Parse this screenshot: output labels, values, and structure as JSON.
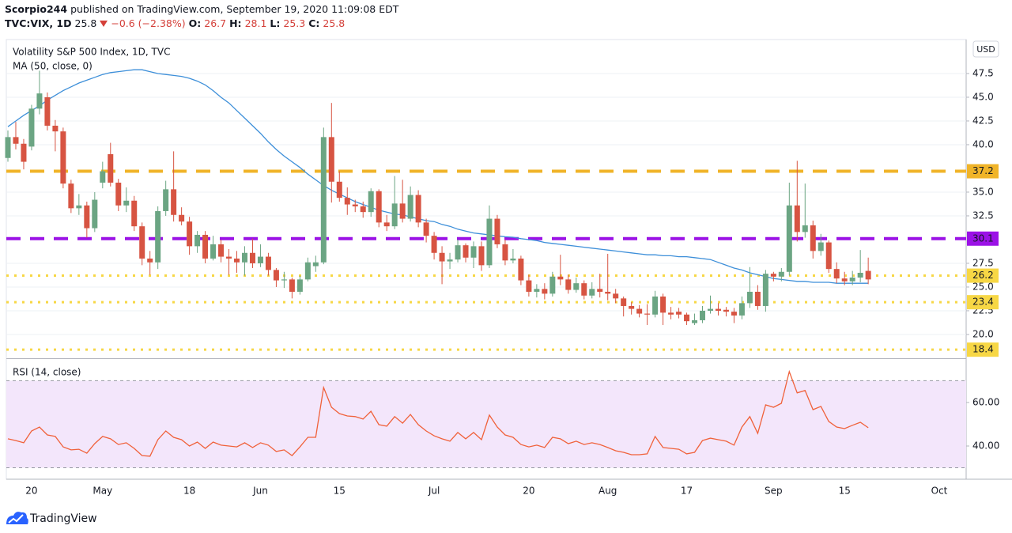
{
  "header": {
    "author": "Scorpio244",
    "published": "published on TradingView.com, September 19, 2020 11:09:08 EDT",
    "symbol": "TVC:VIX, 1D",
    "last": 25.8,
    "change": "−0.6 (−2.38%)",
    "ohlc": [
      {
        "label": "O:",
        "value": 26.7
      },
      {
        "label": "H:",
        "value": 28.1
      },
      {
        "label": "L:",
        "value": 25.3
      },
      {
        "label": "C:",
        "value": 25.8
      }
    ]
  },
  "footer": "TradingView",
  "chart_data": [
    {
      "type": "candlestick",
      "title": "Volatility S&P 500 Index, 1D, TVC",
      "currency": "USD",
      "up_color": "#6ba583",
      "down_color": "#d75442",
      "grid": true,
      "ylim": [
        17.58,
        51.08
      ],
      "yticks": [
        {
          "value": 20,
          "label": "20.0"
        },
        22.5,
        {
          "value": 25,
          "label": "25.0"
        },
        27.5,
        32.5,
        {
          "value": 35,
          "label": "35.0"
        },
        {
          "value": 40,
          "label": "40.0"
        },
        42.5,
        {
          "value": 45,
          "label": "45.0"
        },
        47.5
      ],
      "categories": [
        null,
        null,
        null,
        "20",
        null,
        null,
        null,
        null,
        null,
        null,
        null,
        null,
        "May",
        null,
        null,
        null,
        null,
        null,
        null,
        null,
        null,
        null,
        null,
        "18",
        null,
        null,
        null,
        null,
        null,
        null,
        null,
        null,
        "Jun",
        null,
        null,
        null,
        null,
        null,
        null,
        null,
        null,
        null,
        "15",
        null,
        null,
        null,
        null,
        null,
        null,
        null,
        null,
        null,
        null,
        null,
        "Jul",
        null,
        null,
        null,
        null,
        null,
        null,
        null,
        null,
        null,
        null,
        null,
        "20",
        null,
        null,
        null,
        null,
        null,
        null,
        null,
        null,
        null,
        "Aug",
        null,
        null,
        null,
        null,
        null,
        null,
        null,
        null,
        null,
        "17",
        null,
        null,
        null,
        null,
        null,
        null,
        null,
        null,
        null,
        null,
        "Sep",
        null,
        null,
        null,
        null,
        null,
        null,
        null,
        null,
        "15",
        null,
        null,
        null,
        null,
        null,
        null,
        null,
        null,
        null,
        null,
        null,
        "Oct"
      ],
      "open": [
        38.6,
        40.8,
        40.1,
        39.8,
        43.8,
        45.0,
        42.0,
        41.4,
        35.9,
        33.3,
        33.6,
        31.2,
        36.0,
        39.0,
        36.0,
        33.6,
        34.1,
        31.4,
        28.0,
        27.6,
        33.0,
        35.3,
        32.6,
        31.9,
        29.3,
        30.5,
        28.0,
        29.5,
        28.2,
        28.0,
        27.6,
        28.6,
        27.5,
        28.2,
        26.8,
        25.7,
        25.8,
        24.5,
        25.8,
        27.2,
        27.6,
        40.8,
        36.1,
        34.4,
        33.7,
        33.5,
        32.9,
        35.1,
        31.8,
        31.4,
        33.8,
        32.2,
        34.7,
        31.8,
        30.4,
        28.6,
        27.7,
        27.9,
        29.4,
        28.1,
        29.3,
        27.3,
        32.2,
        29.5,
        27.8,
        28.0,
        25.7,
        24.5,
        24.8,
        24.3,
        26.1,
        25.8,
        24.7,
        25.4,
        24.1,
        24.8,
        24.5,
        24.3,
        23.8,
        23.0,
        22.7,
        22.2,
        22.1,
        24.0,
        22.3,
        22.4,
        22.1,
        21.2,
        21.5,
        22.5,
        22.7,
        22.6,
        22.4,
        22.0,
        23.3,
        24.5,
        23.0,
        26.4,
        26.1,
        26.6,
        33.6,
        30.8,
        31.5,
        28.8,
        29.7,
        26.9,
        25.9,
        25.6,
        26.0,
        26.7,
        null,
        null,
        null,
        null,
        null,
        null,
        null,
        null,
        null
      ],
      "high": [
        41.5,
        42.4,
        40.6,
        44.2,
        47.8,
        45.5,
        42.6,
        41.8,
        36.3,
        34.8,
        34.0,
        35.0,
        38.2,
        40.2,
        36.4,
        35.5,
        34.6,
        31.8,
        28.8,
        33.5,
        36.2,
        39.3,
        33.4,
        32.4,
        30.9,
        30.9,
        30.4,
        30.0,
        29.0,
        28.8,
        29.3,
        30.1,
        29.5,
        28.6,
        27.0,
        26.6,
        26.0,
        26.2,
        28.1,
        28.3,
        41.8,
        44.4,
        37.2,
        35.5,
        34.2,
        34.0,
        35.4,
        35.3,
        32.6,
        36.7,
        36.3,
        35.6,
        35.2,
        32.2,
        30.8,
        29.3,
        28.6,
        30.0,
        29.6,
        29.8,
        29.8,
        33.6,
        32.6,
        30.0,
        29.0,
        28.3,
        26.3,
        25.3,
        25.4,
        26.6,
        28.4,
        26.3,
        26.0,
        25.7,
        25.5,
        26.4,
        28.5,
        24.8,
        24.0,
        23.4,
        23.1,
        23.2,
        24.6,
        24.3,
        22.9,
        22.8,
        22.3,
        22.2,
        23.0,
        24.1,
        23.3,
        22.9,
        22.8,
        24.0,
        27.1,
        25.2,
        26.8,
        26.6,
        27.0,
        36.0,
        38.3,
        35.9,
        32.0,
        30.6,
        29.9,
        27.6,
        26.6,
        26.7,
        28.9,
        28.1,
        null,
        null,
        null,
        null,
        null,
        null,
        null,
        null,
        null
      ],
      "low": [
        38.2,
        39.5,
        37.4,
        39.4,
        43.2,
        41.5,
        39.3,
        35.4,
        32.8,
        32.6,
        30.2,
        30.8,
        35.4,
        35.6,
        33.0,
        32.9,
        30.9,
        27.3,
        26.3,
        26.9,
        32.5,
        31.9,
        31.5,
        28.4,
        28.6,
        27.5,
        27.8,
        27.6,
        26.3,
        26.5,
        26.2,
        27.0,
        27.1,
        26.2,
        25.0,
        24.9,
        23.8,
        24.2,
        25.6,
        26.6,
        27.4,
        33.9,
        34.0,
        32.6,
        32.9,
        32.3,
        32.4,
        31.3,
        30.9,
        31.1,
        31.8,
        31.9,
        31.3,
        29.7,
        27.9,
        25.3,
        26.9,
        27.6,
        27.6,
        27.0,
        26.7,
        27.0,
        29.1,
        27.3,
        27.5,
        25.2,
        24.0,
        23.9,
        23.7,
        24.0,
        25.2,
        24.3,
        24.4,
        23.7,
        23.8,
        23.9,
        23.6,
        23.3,
        21.9,
        22.1,
        21.8,
        21.0,
        21.8,
        21.0,
        21.6,
        21.7,
        21.0,
        21.0,
        21.2,
        22.2,
        22.0,
        21.9,
        21.2,
        21.6,
        22.8,
        22.6,
        22.4,
        25.6,
        25.6,
        26.2,
        29.8,
        30.2,
        28.0,
        28.3,
        26.5,
        25.4,
        25.2,
        25.2,
        25.5,
        25.3,
        null,
        null,
        null,
        null,
        null,
        null,
        null,
        null,
        null
      ],
      "close": [
        40.8,
        40.1,
        38.2,
        43.8,
        45.4,
        42.0,
        41.4,
        35.9,
        33.3,
        33.6,
        31.2,
        34.2,
        37.2,
        36.0,
        33.6,
        34.1,
        31.4,
        28.0,
        27.6,
        33.0,
        35.3,
        32.6,
        31.9,
        29.3,
        30.5,
        28.0,
        29.5,
        28.2,
        28.0,
        27.6,
        28.6,
        27.5,
        28.2,
        26.8,
        25.7,
        25.8,
        24.5,
        25.8,
        27.6,
        27.6,
        40.8,
        36.1,
        34.4,
        33.7,
        33.5,
        32.9,
        35.1,
        31.8,
        31.4,
        33.8,
        32.2,
        34.7,
        31.8,
        30.4,
        28.6,
        27.7,
        27.9,
        29.4,
        28.1,
        29.3,
        27.3,
        32.2,
        29.5,
        27.8,
        28.0,
        25.7,
        24.5,
        24.8,
        24.3,
        26.1,
        25.8,
        24.7,
        25.4,
        24.1,
        24.8,
        24.5,
        24.3,
        23.8,
        23.0,
        22.7,
        22.2,
        22.1,
        24.0,
        22.3,
        22.1,
        22.1,
        21.4,
        21.5,
        22.5,
        22.7,
        22.5,
        22.4,
        22.0,
        23.3,
        24.5,
        23.0,
        26.4,
        26.1,
        26.6,
        33.6,
        30.8,
        31.5,
        28.8,
        29.7,
        26.9,
        25.9,
        25.6,
        26.0,
        26.5,
        25.8,
        null,
        null,
        null,
        null,
        null,
        null,
        null,
        null,
        null
      ],
      "series": [
        {
          "name": "MA (50, close, 0)",
          "color": "#3d8fd9",
          "values": [
            41.9,
            42.5,
            43.1,
            43.6,
            44.1,
            44.7,
            45.2,
            45.7,
            46.1,
            46.5,
            46.8,
            47.1,
            47.4,
            47.6,
            47.7,
            47.8,
            47.9,
            47.9,
            47.7,
            47.5,
            47.4,
            47.3,
            47.2,
            47.0,
            46.7,
            46.3,
            45.7,
            45.0,
            44.4,
            43.6,
            42.8,
            42.0,
            41.2,
            40.3,
            39.5,
            38.8,
            38.2,
            37.6,
            36.9,
            36.3,
            35.7,
            35.2,
            34.8,
            34.4,
            34.0,
            33.7,
            33.4,
            33.1,
            32.9,
            32.7,
            32.6,
            32.4,
            32.2,
            32.0,
            31.9,
            31.6,
            31.4,
            31.1,
            30.9,
            30.7,
            30.6,
            30.5,
            30.4,
            30.3,
            30.25,
            30.1,
            30.0,
            29.9,
            29.7,
            29.6,
            29.5,
            29.4,
            29.3,
            29.2,
            29.1,
            29.0,
            28.9,
            28.8,
            28.7,
            28.6,
            28.5,
            28.4,
            28.4,
            28.3,
            28.3,
            28.2,
            28.2,
            28.1,
            28.0,
            27.9,
            27.6,
            27.3,
            27.0,
            26.8,
            26.5,
            26.3,
            26.1,
            25.9,
            25.8,
            25.7,
            25.6,
            25.6,
            25.5,
            25.5,
            25.5,
            25.4,
            25.4,
            25.4,
            25.4,
            25.4,
            null,
            null,
            null,
            null,
            null,
            null,
            null,
            null,
            null
          ]
        }
      ],
      "levels": [
        {
          "value": 37.2,
          "color": "#f0b429",
          "style": "dashed"
        },
        {
          "value": 30.1,
          "color": "#9b12e6",
          "style": "dashed"
        },
        {
          "value": 26.2,
          "color": "#f7d745",
          "style": "dotted"
        },
        {
          "value": 23.4,
          "color": "#f7d745",
          "style": "dotted"
        },
        {
          "value": 18.4,
          "color": "#f7d745",
          "style": "dotted"
        }
      ]
    },
    {
      "type": "line",
      "title": "RSI (14, close)",
      "color": "#f0613a",
      "grid": false,
      "ylim": [
        25.1,
        79.6
      ],
      "yticks": [
        {
          "value": 60,
          "label": "60.00"
        },
        {
          "value": 40,
          "label": "40.00"
        }
      ],
      "band": [
        30,
        70
      ],
      "band_color": "#f3e6fb",
      "values": [
        43.3,
        42.5,
        41.5,
        46.9,
        48.7,
        45.1,
        44.4,
        39.6,
        38.2,
        38.5,
        36.7,
        41.1,
        44.4,
        43.3,
        40.7,
        41.5,
        38.9,
        35.6,
        35.3,
        42.9,
        46.9,
        44.0,
        42.9,
        40.0,
        41.8,
        38.9,
        41.8,
        40.4,
        40.0,
        39.6,
        41.5,
        39.3,
        41.5,
        40.4,
        37.5,
        38.2,
        35.6,
        39.6,
        44.0,
        44.0,
        66.9,
        57.8,
        54.9,
        53.8,
        53.5,
        52.4,
        56.0,
        49.8,
        49.1,
        53.5,
        50.5,
        54.5,
        49.8,
        46.9,
        44.7,
        43.3,
        42.2,
        46.2,
        43.3,
        46.2,
        42.9,
        54.2,
        48.7,
        45.1,
        44.0,
        40.7,
        39.6,
        40.4,
        39.3,
        44.0,
        43.3,
        41.1,
        42.2,
        40.7,
        41.5,
        40.7,
        39.3,
        37.8,
        37.1,
        36.0,
        36.0,
        36.4,
        44.4,
        39.3,
        38.9,
        38.5,
        36.4,
        37.1,
        42.5,
        43.6,
        42.9,
        42.2,
        40.4,
        48.7,
        53.5,
        45.8,
        58.9,
        57.8,
        59.6,
        74.2,
        64.4,
        65.5,
        56.7,
        58.2,
        51.3,
        48.7,
        48.0,
        49.5,
        50.9,
        48.4,
        null,
        null,
        null,
        null,
        null,
        null,
        null,
        null,
        null
      ]
    }
  ]
}
